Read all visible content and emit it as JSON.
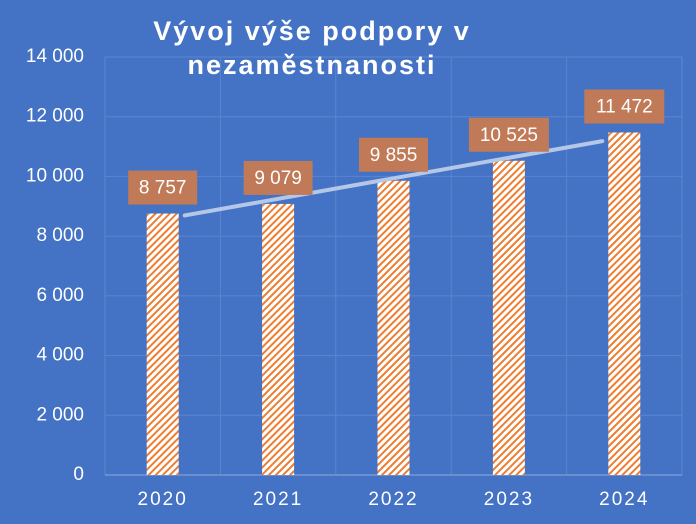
{
  "chart_data": {
    "type": "bar",
    "title": "Vývoj výše podpory v nezaměstnanosti",
    "categories": [
      "2020",
      "2021",
      "2022",
      "2023",
      "2024"
    ],
    "values": [
      8757,
      9079,
      9855,
      10525,
      11472
    ],
    "value_labels": [
      "8 757",
      "9 079",
      "9 855",
      "10 525",
      "11 472"
    ],
    "color": "#ed7d31",
    "label_color": "#c07a58",
    "trendline": "linear",
    "trend_color": "#b4c7e7",
    "background": "#4472c4",
    "ylim": [
      0,
      14000
    ],
    "yticks": [
      0,
      {
        "value": 2000,
        "label": "2 000"
      },
      {
        "value": 4000,
        "label": "4 000"
      },
      {
        "value": 6000,
        "label": "6 000"
      },
      {
        "value": 8000,
        "label": "8 000"
      },
      {
        "value": 10000,
        "label": "10 000"
      },
      {
        "value": 12000,
        "label": "12 000"
      },
      {
        "value": 14000,
        "label": "14 000"
      }
    ],
    "grid": true
  }
}
